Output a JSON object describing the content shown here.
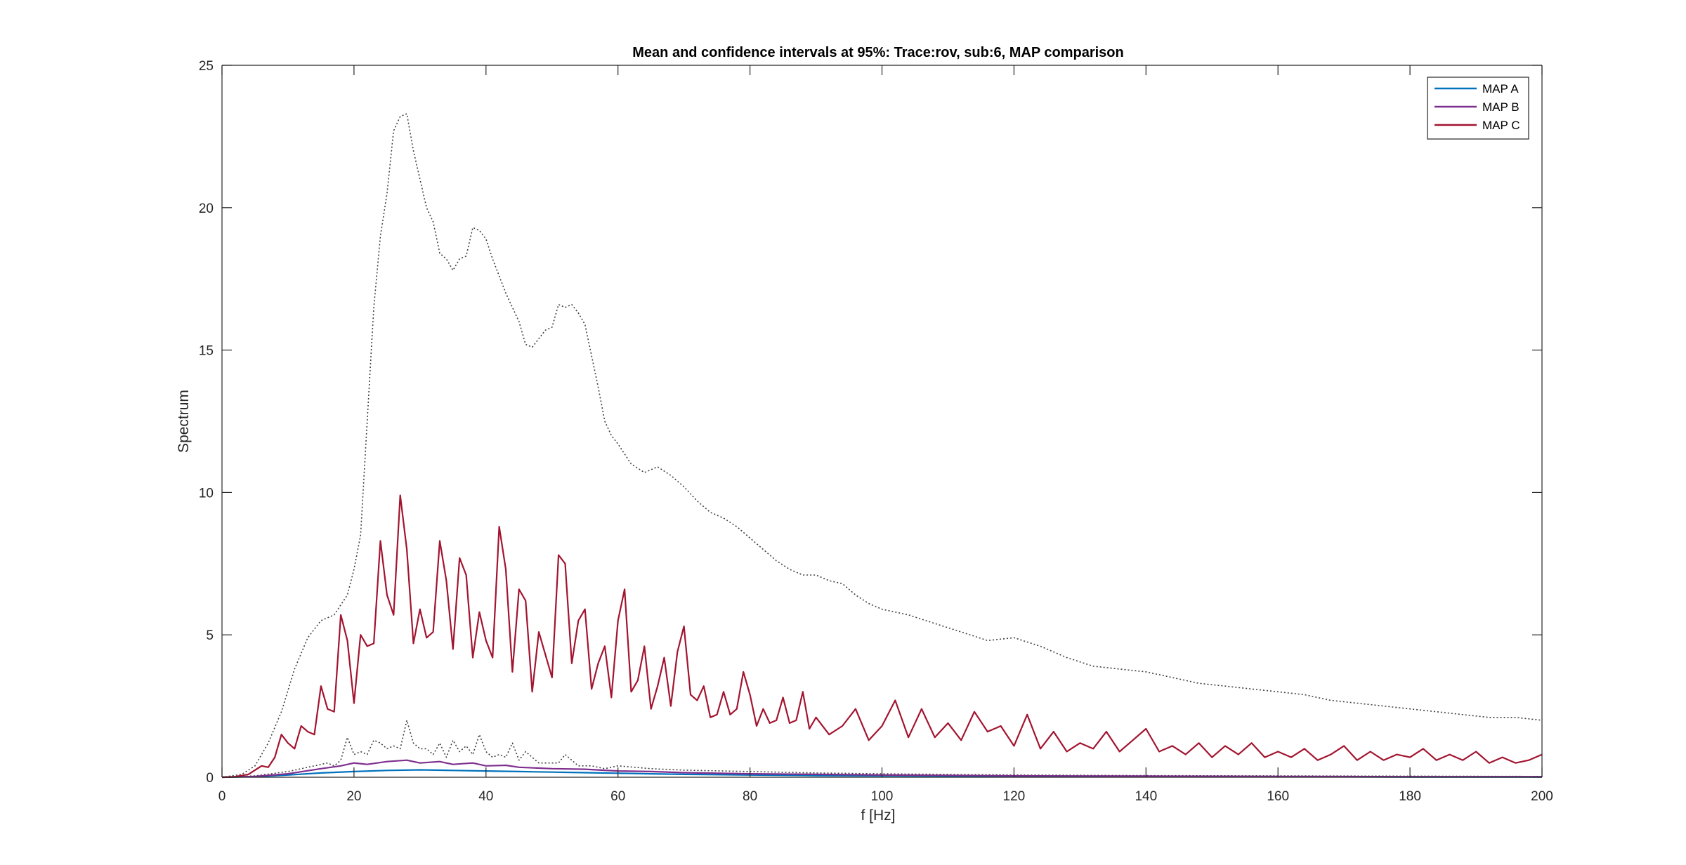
{
  "chart_data": {
    "type": "line",
    "title": "Mean and confidence intervals at 95%: Trace:rov, sub:6, MAP comparison",
    "xlabel": "f [Hz]",
    "ylabel": "Spectrum",
    "xlim": [
      0,
      200
    ],
    "ylim": [
      0,
      25
    ],
    "xticks": [
      0,
      20,
      40,
      60,
      80,
      100,
      120,
      140,
      160,
      180,
      200
    ],
    "yticks": [
      0,
      5,
      10,
      15,
      20,
      25
    ],
    "grid": false,
    "legend_position": "top-right",
    "series": [
      {
        "name": "MAP A",
        "color": "#0072BD",
        "style": "solid",
        "x": [
          0,
          5,
          10,
          15,
          20,
          25,
          30,
          35,
          40,
          45,
          50,
          55,
          60,
          65,
          70,
          80,
          90,
          100,
          120,
          140,
          160,
          180,
          200
        ],
        "values": [
          0,
          0.02,
          0.08,
          0.15,
          0.2,
          0.24,
          0.26,
          0.24,
          0.22,
          0.2,
          0.18,
          0.16,
          0.14,
          0.12,
          0.1,
          0.08,
          0.06,
          0.05,
          0.03,
          0.02,
          0.02,
          0.01,
          0.01
        ]
      },
      {
        "name": "MAP B",
        "color": "#7E2F8E",
        "style": "solid",
        "x": [
          0,
          5,
          10,
          15,
          18,
          20,
          22,
          25,
          28,
          30,
          33,
          35,
          38,
          40,
          43,
          45,
          50,
          55,
          60,
          65,
          70,
          80,
          90,
          100,
          120,
          140,
          160,
          180,
          200
        ],
        "values": [
          0,
          0.03,
          0.12,
          0.3,
          0.4,
          0.5,
          0.45,
          0.55,
          0.6,
          0.5,
          0.55,
          0.45,
          0.5,
          0.4,
          0.42,
          0.35,
          0.3,
          0.28,
          0.22,
          0.2,
          0.16,
          0.12,
          0.1,
          0.08,
          0.05,
          0.04,
          0.03,
          0.02,
          0.02
        ]
      },
      {
        "name": "MAP C",
        "color": "#A2142F",
        "style": "solid",
        "x": [
          0,
          2,
          4,
          6,
          7,
          8,
          9,
          10,
          11,
          12,
          13,
          14,
          15,
          16,
          17,
          18,
          19,
          20,
          21,
          22,
          23,
          24,
          25,
          26,
          27,
          28,
          29,
          30,
          31,
          32,
          33,
          34,
          35,
          36,
          37,
          38,
          39,
          40,
          41,
          42,
          43,
          44,
          45,
          46,
          47,
          48,
          49,
          50,
          51,
          52,
          53,
          54,
          55,
          56,
          57,
          58,
          59,
          60,
          61,
          62,
          63,
          64,
          65,
          66,
          67,
          68,
          69,
          70,
          71,
          72,
          73,
          74,
          75,
          76,
          77,
          78,
          79,
          80,
          81,
          82,
          83,
          84,
          85,
          86,
          87,
          88,
          89,
          90,
          92,
          94,
          96,
          98,
          100,
          102,
          104,
          106,
          108,
          110,
          112,
          114,
          116,
          118,
          120,
          122,
          124,
          126,
          128,
          130,
          132,
          134,
          136,
          138,
          140,
          142,
          144,
          146,
          148,
          150,
          152,
          154,
          156,
          158,
          160,
          162,
          164,
          166,
          168,
          170,
          172,
          174,
          176,
          178,
          180,
          182,
          184,
          186,
          188,
          190,
          192,
          194,
          196,
          198,
          200
        ],
        "values": [
          0,
          0.02,
          0.1,
          0.4,
          0.35,
          0.7,
          1.5,
          1.2,
          1.0,
          1.8,
          1.6,
          1.5,
          3.2,
          2.4,
          2.3,
          5.7,
          4.8,
          2.6,
          5.0,
          4.6,
          4.7,
          8.3,
          6.4,
          5.7,
          9.9,
          8.0,
          4.7,
          5.9,
          4.9,
          5.1,
          8.3,
          6.9,
          4.5,
          7.7,
          7.1,
          4.2,
          5.8,
          4.8,
          4.2,
          8.8,
          7.3,
          3.7,
          6.6,
          6.2,
          3.0,
          5.1,
          4.3,
          3.5,
          7.8,
          7.5,
          4.0,
          5.5,
          5.9,
          3.1,
          4.0,
          4.6,
          2.8,
          5.5,
          6.6,
          3.0,
          3.4,
          4.6,
          2.4,
          3.2,
          4.2,
          2.5,
          4.4,
          5.3,
          2.9,
          2.7,
          3.2,
          2.1,
          2.2,
          3.0,
          2.2,
          2.4,
          3.7,
          2.9,
          1.8,
          2.4,
          1.9,
          2.0,
          2.8,
          1.9,
          2.0,
          3.0,
          1.7,
          2.1,
          1.5,
          1.8,
          2.4,
          1.3,
          1.8,
          2.7,
          1.4,
          2.4,
          1.4,
          1.9,
          1.3,
          2.3,
          1.6,
          1.8,
          1.1,
          2.2,
          1.0,
          1.6,
          0.9,
          1.2,
          1.0,
          1.6,
          0.9,
          1.3,
          1.7,
          0.9,
          1.1,
          0.8,
          1.2,
          0.7,
          1.1,
          0.8,
          1.2,
          0.7,
          0.9,
          0.7,
          1.0,
          0.6,
          0.8,
          1.1,
          0.6,
          0.9,
          0.6,
          0.8,
          0.7,
          1.0,
          0.6,
          0.8,
          0.6,
          0.9,
          0.5,
          0.7,
          0.5,
          0.6,
          0.8
        ]
      },
      {
        "name": "",
        "color": "#404040",
        "style": "dotted",
        "x": [
          0,
          3,
          5,
          7,
          9,
          11,
          13,
          15,
          17,
          19,
          20,
          21,
          22,
          23,
          24,
          25,
          26,
          27,
          28,
          29,
          30,
          31,
          32,
          33,
          34,
          35,
          36,
          37,
          38,
          39,
          40,
          41,
          42,
          43,
          44,
          45,
          46,
          47,
          48,
          49,
          50,
          51,
          52,
          53,
          54,
          55,
          56,
          57,
          58,
          59,
          60,
          62,
          64,
          66,
          68,
          70,
          72,
          74,
          76,
          78,
          80,
          82,
          84,
          86,
          88,
          90,
          92,
          94,
          96,
          98,
          100,
          104,
          108,
          112,
          116,
          120,
          124,
          128,
          132,
          136,
          140,
          144,
          148,
          152,
          156,
          160,
          164,
          168,
          172,
          176,
          180,
          184,
          188,
          192,
          196,
          200
        ],
        "values": [
          0,
          0.1,
          0.4,
          1.2,
          2.3,
          3.8,
          4.9,
          5.5,
          5.7,
          6.4,
          7.3,
          8.5,
          12.5,
          16.5,
          19.0,
          20.5,
          22.7,
          23.2,
          23.3,
          22.0,
          21.0,
          20.0,
          19.5,
          18.4,
          18.2,
          17.8,
          18.2,
          18.3,
          19.3,
          19.2,
          18.9,
          18.2,
          17.6,
          17.0,
          16.5,
          16.0,
          15.2,
          15.1,
          15.4,
          15.7,
          15.8,
          16.6,
          16.5,
          16.6,
          16.3,
          15.9,
          14.8,
          13.7,
          12.5,
          12.0,
          11.7,
          11.0,
          10.7,
          10.9,
          10.6,
          10.2,
          9.7,
          9.3,
          9.1,
          8.8,
          8.4,
          8.0,
          7.6,
          7.3,
          7.1,
          7.1,
          6.9,
          6.8,
          6.4,
          6.1,
          5.9,
          5.7,
          5.4,
          5.1,
          4.8,
          4.9,
          4.6,
          4.2,
          3.9,
          3.8,
          3.7,
          3.5,
          3.3,
          3.2,
          3.1,
          3.0,
          2.9,
          2.7,
          2.6,
          2.5,
          2.4,
          2.3,
          2.2,
          2.1,
          2.1,
          2.0
        ]
      },
      {
        "name": "",
        "color": "#404040",
        "style": "dotted",
        "x": [
          0,
          5,
          10,
          14,
          16,
          17,
          18,
          19,
          20,
          21,
          22,
          23,
          24,
          25,
          26,
          27,
          28,
          29,
          30,
          31,
          32,
          33,
          34,
          35,
          36,
          37,
          38,
          39,
          40,
          41,
          42,
          43,
          44,
          45,
          46,
          48,
          50,
          51,
          52,
          54,
          56,
          58,
          60,
          65,
          70,
          80,
          90,
          100,
          120,
          140,
          160,
          180,
          200
        ],
        "values": [
          0,
          0.05,
          0.2,
          0.4,
          0.5,
          0.4,
          0.6,
          1.4,
          0.8,
          0.9,
          0.8,
          1.3,
          1.2,
          1.0,
          1.1,
          1.0,
          2.0,
          1.2,
          1.0,
          1.0,
          0.8,
          1.2,
          0.7,
          1.3,
          0.9,
          1.1,
          0.8,
          1.5,
          0.9,
          0.7,
          0.8,
          0.7,
          1.2,
          0.6,
          0.9,
          0.5,
          0.5,
          0.5,
          0.8,
          0.4,
          0.4,
          0.3,
          0.4,
          0.3,
          0.25,
          0.2,
          0.15,
          0.12,
          0.08,
          0.06,
          0.05,
          0.04,
          0.03
        ]
      }
    ]
  }
}
